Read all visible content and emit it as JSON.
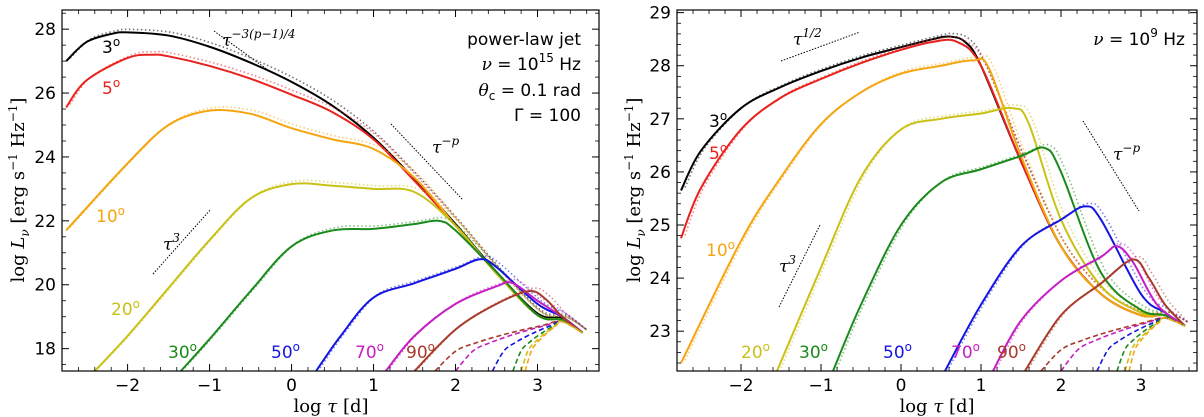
{
  "chart_data": [
    {
      "type": "line",
      "panel": "left",
      "xlabel": "log τ [d]",
      "ylabel": "log L_ν [erg s⁻¹ Hz⁻¹]",
      "xlim": [
        -2.8,
        3.75
      ],
      "ylim": [
        17.3,
        28.6
      ],
      "xticks": [
        -2,
        -1,
        0,
        1,
        2,
        3
      ],
      "yticks": [
        18,
        20,
        22,
        24,
        26,
        28
      ],
      "annotations": [
        "power-law jet",
        "ν = 10^15 Hz",
        "θc = 0.1 rad",
        "Γ = 100"
      ],
      "slope_labels": [
        "τ^{-3(p-1)/4}",
        "τ^{-p}",
        "τ^3"
      ],
      "series": [
        {
          "name": "3°",
          "color": "#000000",
          "x": [
            -2.75,
            -2.5,
            -2.2,
            -2.0,
            -1.5,
            -1.0,
            -0.5,
            0.0,
            0.5,
            1.0,
            1.5,
            2.0,
            2.5,
            3.0,
            3.3,
            3.55
          ],
          "y": [
            27.0,
            27.6,
            27.85,
            27.9,
            27.8,
            27.45,
            26.95,
            26.35,
            25.6,
            24.6,
            23.3,
            21.9,
            20.4,
            19.1,
            18.95,
            18.5
          ]
        },
        {
          "name": "5°",
          "color": "#e8211d",
          "x": [
            -2.75,
            -2.5,
            -2.0,
            -1.7,
            -1.5,
            -1.0,
            -0.5,
            0.0,
            0.5,
            1.0,
            1.5,
            2.0,
            2.5,
            3.0,
            3.3,
            3.55
          ],
          "y": [
            25.55,
            26.4,
            27.1,
            27.2,
            27.15,
            26.85,
            26.45,
            25.95,
            25.4,
            24.55,
            23.25,
            21.85,
            20.35,
            19.05,
            18.9,
            18.5
          ]
        },
        {
          "name": "10°",
          "color": "#f4a50f",
          "x": [
            -2.75,
            -2.0,
            -1.5,
            -1.0,
            -0.5,
            0.0,
            0.5,
            1.0,
            1.5,
            2.0,
            2.5,
            3.0,
            3.3,
            3.55
          ],
          "y": [
            21.7,
            23.8,
            25.0,
            25.45,
            25.35,
            24.9,
            24.55,
            24.25,
            23.35,
            21.85,
            20.35,
            19.05,
            18.9,
            18.5
          ]
        },
        {
          "name": "20°",
          "color": "#c9c116",
          "x": [
            -2.4,
            -2.0,
            -1.5,
            -1.0,
            -0.5,
            0.0,
            0.5,
            1.0,
            1.5,
            2.0,
            2.5,
            3.0,
            3.3,
            3.55
          ],
          "y": [
            17.3,
            18.4,
            19.9,
            21.4,
            22.7,
            23.15,
            23.1,
            23.0,
            22.9,
            21.85,
            20.35,
            19.05,
            18.9,
            18.5
          ]
        },
        {
          "name": "30°",
          "color": "#1a8a1a",
          "x": [
            -1.35,
            -1.0,
            -0.5,
            0.0,
            0.5,
            1.0,
            1.5,
            1.8,
            2.0,
            2.5,
            3.0,
            3.3,
            3.55
          ],
          "y": [
            17.3,
            18.3,
            19.8,
            21.2,
            21.7,
            21.75,
            21.9,
            22.0,
            21.7,
            20.4,
            19.05,
            18.9,
            18.5
          ]
        },
        {
          "name": "50°",
          "color": "#1515e0",
          "x": [
            0.3,
            0.6,
            1.0,
            1.5,
            2.0,
            2.3,
            2.5,
            3.0,
            3.3,
            3.55
          ],
          "y": [
            17.3,
            18.4,
            19.6,
            20.05,
            20.5,
            20.8,
            20.55,
            19.4,
            19.0,
            18.5
          ]
        },
        {
          "name": "70°",
          "color": "#c41ec4",
          "x": [
            1.15,
            1.5,
            2.0,
            2.5,
            2.7,
            3.0,
            3.3,
            3.55
          ],
          "y": [
            17.3,
            18.4,
            19.4,
            19.95,
            20.05,
            19.5,
            19.0,
            18.5
          ]
        },
        {
          "name": "90°",
          "color": "#a83a2a",
          "x": [
            1.5,
            2.0,
            2.5,
            2.9,
            3.1,
            3.3,
            3.55
          ],
          "y": [
            17.3,
            18.6,
            19.4,
            19.8,
            19.55,
            19.0,
            18.5
          ]
        }
      ]
    },
    {
      "type": "line",
      "panel": "right",
      "xlabel": "log τ [d]",
      "ylabel": "log L_ν [erg s⁻¹ Hz⁻¹]",
      "xlim": [
        -2.8,
        3.7
      ],
      "ylim": [
        22.25,
        29.05
      ],
      "xticks": [
        -2,
        -1,
        0,
        1,
        2,
        3
      ],
      "yticks": [
        23,
        24,
        25,
        26,
        27,
        28,
        29
      ],
      "annotations": [
        "ν = 10^9 Hz"
      ],
      "slope_labels": [
        "τ^{1/2}",
        "τ^{-p}",
        "τ^3"
      ],
      "series": [
        {
          "name": "3°",
          "color": "#000000",
          "x": [
            -2.75,
            -2.5,
            -2.0,
            -1.5,
            -1.0,
            -0.5,
            0.0,
            0.4,
            0.6,
            0.8,
            1.0,
            1.5,
            2.0,
            2.5,
            3.0,
            3.3,
            3.55
          ],
          "y": [
            25.65,
            26.4,
            27.2,
            27.6,
            27.9,
            28.15,
            28.35,
            28.5,
            28.55,
            28.45,
            28.0,
            26.2,
            24.6,
            23.7,
            23.3,
            23.3,
            23.1
          ]
        },
        {
          "name": "5°",
          "color": "#e8211d",
          "x": [
            -2.75,
            -2.5,
            -2.0,
            -1.5,
            -1.0,
            -0.5,
            0.0,
            0.4,
            0.7,
            1.0,
            1.5,
            2.0,
            2.5,
            3.0,
            3.3,
            3.55
          ],
          "y": [
            24.75,
            25.7,
            26.8,
            27.4,
            27.75,
            28.05,
            28.3,
            28.45,
            28.45,
            28.0,
            26.2,
            24.6,
            23.7,
            23.3,
            23.3,
            23.1
          ]
        },
        {
          "name": "10°",
          "color": "#f4a50f",
          "x": [
            -2.75,
            -2.0,
            -1.5,
            -1.0,
            -0.5,
            0.0,
            0.5,
            0.9,
            1.1,
            1.5,
            2.0,
            2.5,
            3.0,
            3.3,
            3.55
          ],
          "y": [
            22.4,
            24.7,
            25.9,
            26.9,
            27.5,
            27.85,
            28.0,
            28.1,
            27.95,
            26.3,
            24.6,
            23.7,
            23.3,
            23.3,
            23.1
          ]
        },
        {
          "name": "20°",
          "color": "#c9c116",
          "x": [
            -1.55,
            -1.0,
            -0.5,
            0.0,
            0.5,
            1.0,
            1.4,
            1.6,
            2.0,
            2.5,
            3.0,
            3.3,
            3.55
          ],
          "y": [
            22.25,
            24.2,
            25.9,
            26.8,
            27.0,
            27.1,
            27.2,
            26.9,
            25.1,
            23.85,
            23.35,
            23.3,
            23.1
          ]
        },
        {
          "name": "30°",
          "color": "#1a8a1a",
          "x": [
            -0.85,
            -0.5,
            0.0,
            0.5,
            1.0,
            1.5,
            1.8,
            2.0,
            2.5,
            3.0,
            3.3,
            3.55
          ],
          "y": [
            22.25,
            23.5,
            25.0,
            25.8,
            26.05,
            26.3,
            26.45,
            26.0,
            24.1,
            23.4,
            23.3,
            23.1
          ]
        },
        {
          "name": "50°",
          "color": "#1515e0",
          "x": [
            0.55,
            1.0,
            1.5,
            2.0,
            2.3,
            2.5,
            3.0,
            3.3,
            3.55
          ],
          "y": [
            22.25,
            23.5,
            24.6,
            25.1,
            25.35,
            25.1,
            23.7,
            23.35,
            23.1
          ]
        },
        {
          "name": "70°",
          "color": "#c41ec4",
          "x": [
            1.15,
            1.5,
            2.0,
            2.5,
            2.7,
            2.9,
            3.2,
            3.55
          ],
          "y": [
            22.25,
            23.2,
            23.95,
            24.4,
            24.6,
            24.3,
            23.5,
            23.1
          ]
        },
        {
          "name": "90°",
          "color": "#a83a2a",
          "x": [
            1.55,
            2.0,
            2.5,
            2.9,
            3.1,
            3.3,
            3.55
          ],
          "y": [
            22.25,
            23.3,
            23.9,
            24.35,
            24.0,
            23.5,
            23.1
          ]
        }
      ]
    }
  ],
  "labels_left": [
    "3°",
    "5°",
    "10°",
    "20°",
    "30°",
    "50°",
    "70°",
    "90°"
  ],
  "labels_right": [
    "3°",
    "5°",
    "10°",
    "20°",
    "30°",
    "50°",
    "70°",
    "90°"
  ],
  "colors": {
    "3": "#000000",
    "5": "#e8211d",
    "10": "#f4a50f",
    "20": "#c9c116",
    "30": "#1a8a1a",
    "50": "#1515e0",
    "70": "#c41ec4",
    "90": "#a83a2a"
  }
}
